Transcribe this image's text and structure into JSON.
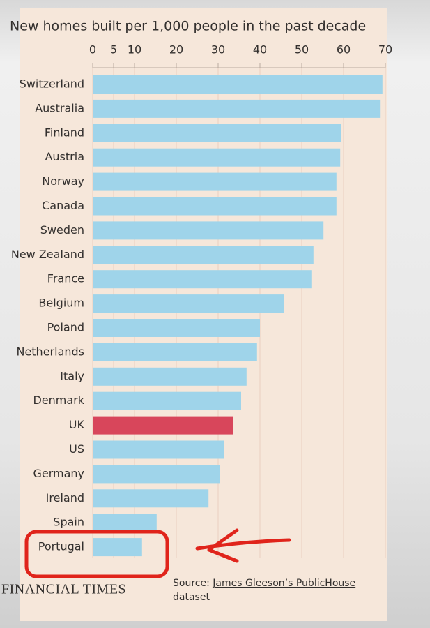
{
  "chart_data": {
    "type": "bar",
    "orientation": "horizontal",
    "title": "New homes built per 1,000 people in the past decade",
    "categories": [
      "Switzerland",
      "Australia",
      "Finland",
      "Austria",
      "Norway",
      "Canada",
      "Sweden",
      "New Zealand",
      "France",
      "Belgium",
      "Poland",
      "Netherlands",
      "Italy",
      "Denmark",
      "UK",
      "US",
      "Germany",
      "Ireland",
      "Spain",
      "Portugal"
    ],
    "values": [
      69.3,
      68.7,
      59.5,
      59.2,
      58.3,
      58.3,
      55.2,
      52.8,
      52.3,
      45.8,
      40,
      39.3,
      36.8,
      35.5,
      33.5,
      31.5,
      30.5,
      27.7,
      15.3,
      11.8
    ],
    "colors": [
      "#9fd4ea",
      "#9fd4ea",
      "#9fd4ea",
      "#9fd4ea",
      "#9fd4ea",
      "#9fd4ea",
      "#9fd4ea",
      "#9fd4ea",
      "#9fd4ea",
      "#9fd4ea",
      "#9fd4ea",
      "#9fd4ea",
      "#9fd4ea",
      "#9fd4ea",
      "#d8465b",
      "#9fd4ea",
      "#9fd4ea",
      "#9fd4ea",
      "#9fd4ea",
      "#9fd4ea"
    ],
    "xlim": [
      0,
      70
    ],
    "xticks": [
      0,
      5,
      10,
      20,
      30,
      40,
      50,
      60,
      70
    ],
    "grid": true,
    "logo": "FINANCIAL TIMES",
    "source_prefix": "Source:",
    "source_link": "James Gleeson’s PublicHouse dataset"
  }
}
